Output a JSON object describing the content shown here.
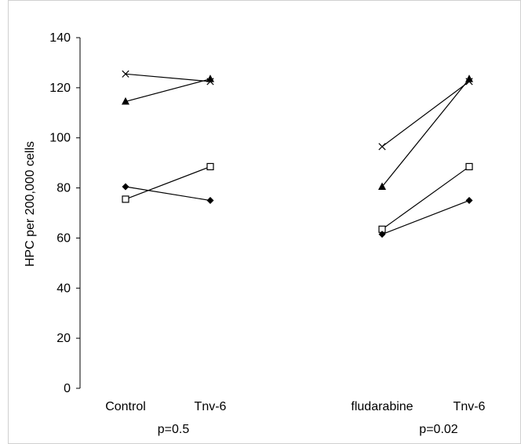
{
  "chart_data": {
    "type": "line",
    "title": "",
    "xlabel": "",
    "ylabel": "HPC per 200,000 cells",
    "ylim": [
      0,
      140
    ],
    "yticks": [
      0,
      20,
      40,
      60,
      80,
      100,
      120,
      140
    ],
    "grid": false,
    "legend": "none",
    "groups": [
      {
        "categories": [
          "Control",
          "Tnv-6"
        ],
        "pvalue_label": "p=0.5",
        "series": [
          {
            "marker": "cross",
            "values": [
              125.5,
              122.5
            ]
          },
          {
            "marker": "triangle",
            "values": [
              114.5,
              123.5
            ]
          },
          {
            "marker": "square",
            "values": [
              75.5,
              88.5
            ]
          },
          {
            "marker": "diamond",
            "values": [
              80.5,
              75.0
            ]
          }
        ]
      },
      {
        "categories": [
          "fludarabine",
          "Tnv-6"
        ],
        "pvalue_label": "p=0.02",
        "series": [
          {
            "marker": "cross",
            "values": [
              96.5,
              122.5
            ]
          },
          {
            "marker": "triangle",
            "values": [
              80.5,
              123.5
            ]
          },
          {
            "marker": "square",
            "values": [
              63.5,
              88.5
            ]
          },
          {
            "marker": "diamond",
            "values": [
              61.5,
              75.0
            ]
          }
        ]
      }
    ]
  }
}
